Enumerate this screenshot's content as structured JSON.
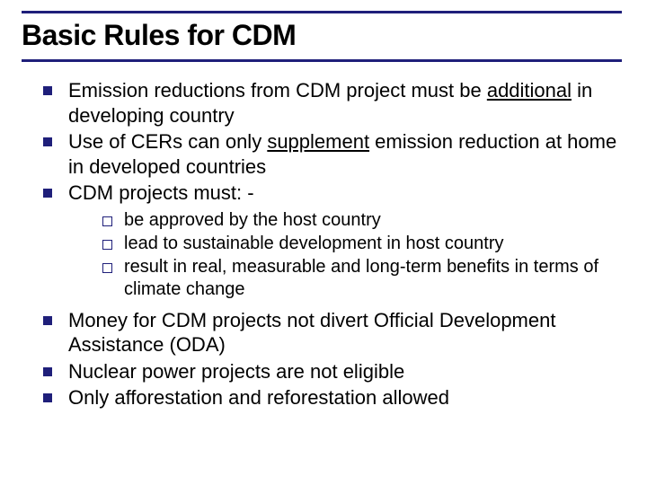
{
  "slide": {
    "title": "Basic Rules for CDM",
    "title_fontsize": 32,
    "title_color": "#000000",
    "rule_color": "#1f1f7a",
    "background_color": "#ffffff",
    "body_fontsize_l1": 22,
    "body_fontsize_l2": 20,
    "bullet_fill_color": "#1f1f7a",
    "bullet_outline_color": "#1f1f7a",
    "bullets_l1": [
      {
        "pre": "Emission reductions from CDM project must be ",
        "underlined": "additional",
        "post": " in developing country"
      },
      {
        "pre": "Use of CERs can only ",
        "underlined": "supplement",
        "post": " emission reduction at home in developed countries"
      },
      {
        "pre": "CDM projects must: -",
        "underlined": "",
        "post": ""
      }
    ],
    "bullets_l2": [
      "be approved by the host country",
      "lead to sustainable development in host country",
      "result in real, measurable and long-term benefits in terms of climate change"
    ],
    "bullets_l1_after": [
      "Money for CDM projects not divert Official Development Assistance (ODA)",
      "Nuclear power projects are not eligible",
      "Only afforestation and reforestation allowed"
    ]
  }
}
